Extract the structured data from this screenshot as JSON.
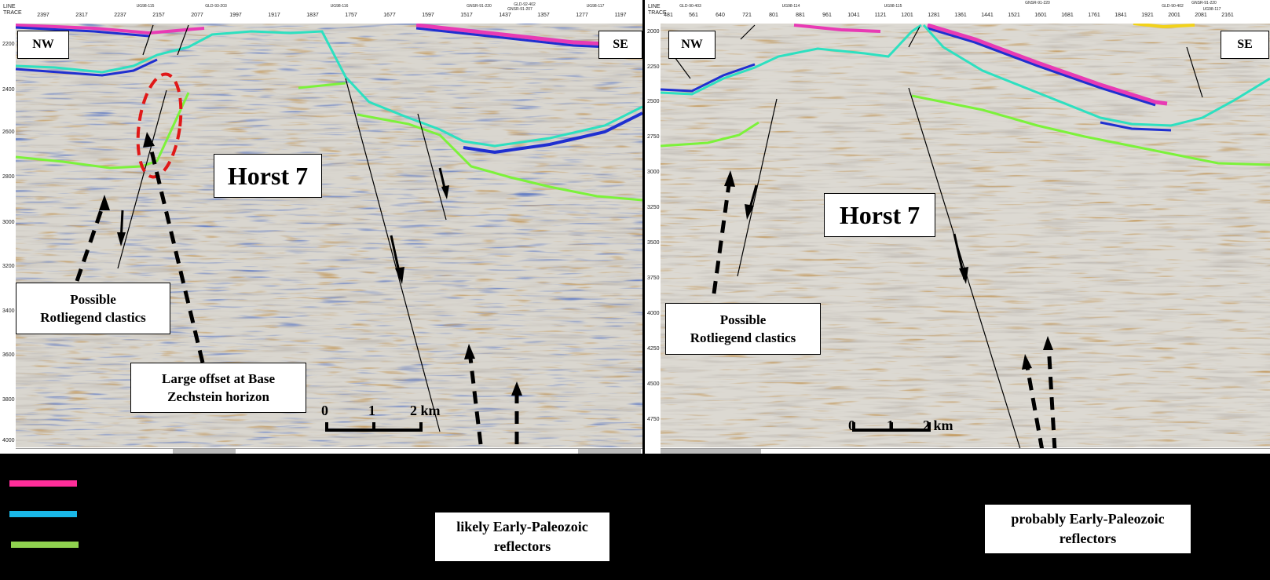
{
  "left_panel": {
    "header_labels": [
      "LINE",
      "TRACE"
    ],
    "trace_ticks": [
      "2397",
      "2317",
      "2237",
      "2157",
      "2077",
      "1997",
      "1917",
      "1837",
      "1757",
      "1677",
      "1597",
      "1517",
      "1437",
      "1357",
      "1277",
      "1197"
    ],
    "line_ticks": [
      "UG98-115",
      "GLD-93-203",
      "UG98-116",
      "GNSR-91-220",
      "GNSR-91-207",
      "GLD-92-402",
      "UG98-117"
    ],
    "depth_labels": [
      "2200",
      "2400",
      "2600",
      "2800",
      "3000",
      "3200",
      "3400",
      "3600",
      "3800",
      "4000"
    ],
    "orientation_left": "NW",
    "orientation_right": "SE",
    "horst_label": "Horst 7",
    "annotation_clastics_1": "Possible",
    "annotation_clastics_2": "Rotliegend clastics",
    "annotation_offset_1": "Large offset at Base",
    "annotation_offset_2": "Zechstein horizon",
    "scale_labels": [
      "0",
      "1",
      "2 km"
    ]
  },
  "right_panel": {
    "header_labels": [
      "LINE",
      "TRACE"
    ],
    "trace_ticks": [
      "481",
      "561",
      "640",
      "721",
      "801",
      "881",
      "961",
      "1041",
      "1121",
      "1201",
      "1281",
      "1361",
      "1441",
      "1521",
      "1601",
      "1681",
      "1761",
      "1841",
      "1921",
      "2001",
      "2081",
      "2161"
    ],
    "line_ticks": [
      "GLD-90-403",
      "UG98-114",
      "UG98-115",
      "GNSR-91-220",
      "GLD-90-402",
      "GNSR-91-220",
      "UG98-117"
    ],
    "depth_labels": [
      "2000",
      "2250",
      "2500",
      "2750",
      "3000",
      "3250",
      "3500",
      "3750",
      "4000",
      "4250",
      "4500",
      "4750"
    ],
    "orientation_left": "NW",
    "orientation_right": "SE",
    "horst_label": "Horst 7",
    "annotation_clastics_1": "Possible",
    "annotation_clastics_2": "Rotliegend clastics",
    "scale_labels": [
      "0",
      "1",
      "2 km"
    ]
  },
  "legend": {
    "colors": [
      "#ff2e9a",
      "#1ab8e8",
      "#8fd14f"
    ]
  },
  "bottom_notes": {
    "left_1": "likely Early-Paleozoic",
    "left_2": "reflectors",
    "right_1": "probably Early-Paleozoic",
    "right_2": "reflectors"
  },
  "horizon_colors": {
    "pink": "#e83ab4",
    "cyan": "#2de0c0",
    "green": "#7cf23a",
    "blue": "#1f2fd0",
    "fault": "#000000",
    "dashed_oval": "#e01818"
  }
}
